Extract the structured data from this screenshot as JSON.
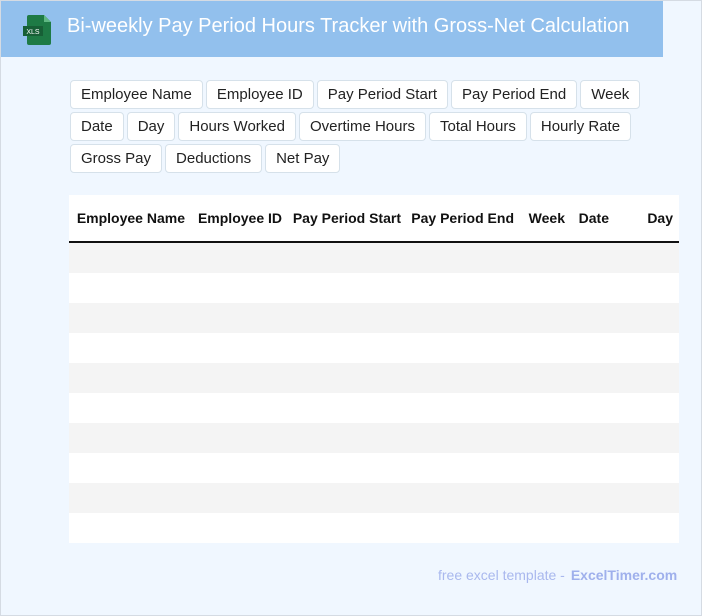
{
  "header": {
    "title": "Bi-weekly Pay Period Hours Tracker with Gross-Net Calculation",
    "logo_text": "XLS",
    "logo_icon": "excel-file-icon",
    "background": "#92c0ed"
  },
  "tags": [
    "Employee Name",
    "Employee ID",
    "Pay Period Start",
    "Pay Period End",
    "Week",
    "Date",
    "Day",
    "Hours Worked",
    "Overtime Hours",
    "Total Hours",
    "Hourly Rate",
    "Gross Pay",
    "Deductions",
    "Net Pay"
  ],
  "table": {
    "columns": [
      "Employee Name",
      "Employee ID",
      "Pay Period Start",
      "Pay Period End",
      "Week",
      "Date",
      "Day"
    ],
    "row_count": 10
  },
  "footer": {
    "text": "free excel template -",
    "brand": "ExcelTimer.com"
  }
}
